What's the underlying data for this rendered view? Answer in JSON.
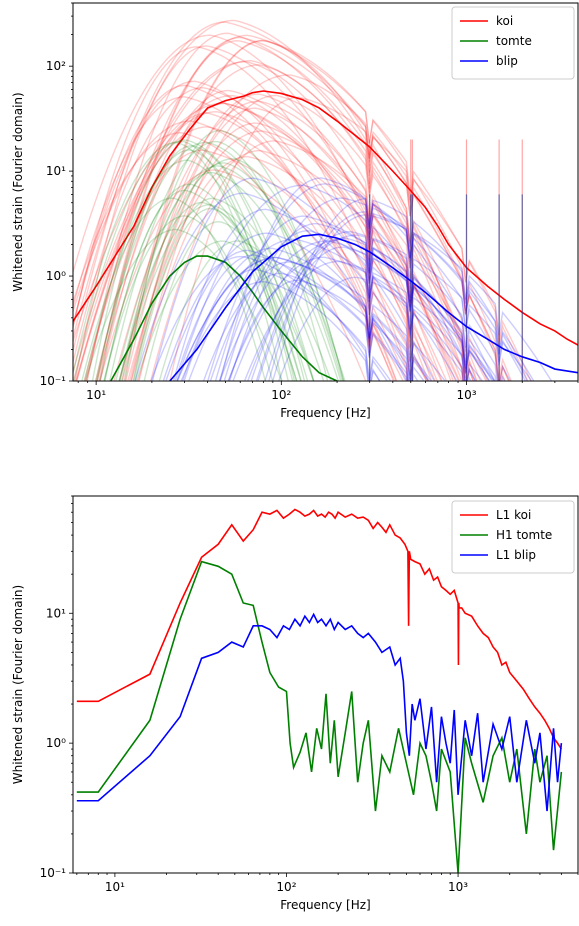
{
  "chart_data": [
    {
      "type": "line",
      "title": "",
      "xlabel": "Frequency [Hz]",
      "ylabel": "Whitened strain (Fourier domain)",
      "xscale": "log",
      "yscale": "log",
      "xlim": [
        7.5,
        4000
      ],
      "ylim": [
        0.1,
        400
      ],
      "xticks": [
        {
          "value": 10,
          "label": "10¹"
        },
        {
          "value": 100,
          "label": "10²"
        },
        {
          "value": 1000,
          "label": "10³"
        }
      ],
      "yticks": [
        {
          "value": 0.1,
          "label": "10⁻¹"
        },
        {
          "value": 1,
          "label": "10⁰"
        },
        {
          "value": 10,
          "label": "10¹"
        },
        {
          "value": 100,
          "label": "10²"
        }
      ],
      "grid": false,
      "legend_position": "top-right",
      "series": [
        {
          "name": "koi",
          "color": "#ff0000",
          "bundle": {
            "count": 40,
            "peak_f": [
              25,
              130
            ],
            "peak_amp": [
              10,
              320
            ],
            "rise": 2.2,
            "fall": 1.2
          },
          "mean": {
            "x": [
              7.5,
              10,
              16,
              20,
              25,
              32,
              40,
              50,
              63,
              70,
              80,
              100,
              130,
              160,
              200,
              250,
              300,
              400,
              500,
              600,
              700,
              800,
              1000,
              1300,
              1600,
              2000,
              2500,
              3000,
              3500,
              4000
            ],
            "y": [
              0.37,
              0.8,
              3.0,
              7.0,
              14,
              25,
              40,
              47,
              52,
              56,
              58,
              55,
              48,
              40,
              30,
              22,
              17,
              10,
              6.5,
              4.5,
              3.0,
              2.0,
              1.2,
              0.8,
              0.6,
              0.45,
              0.35,
              0.3,
              0.25,
              0.22
            ]
          }
        },
        {
          "name": "tomte",
          "color": "#008000",
          "bundle": {
            "count": 25,
            "peak_f": [
              25,
              60
            ],
            "peak_amp": [
              2,
              25
            ],
            "rise": 3.5,
            "fall": 3.5
          },
          "mean": {
            "x": [
              12,
              16,
              20,
              25,
              30,
              35,
              40,
              50,
              60,
              70,
              80,
              100,
              130,
              160,
              200
            ],
            "y": [
              0.1,
              0.25,
              0.55,
              1.0,
              1.35,
              1.55,
              1.55,
              1.35,
              1.0,
              0.7,
              0.5,
              0.3,
              0.17,
              0.12,
              0.1
            ]
          }
        },
        {
          "name": "blip",
          "color": "#0000ff",
          "bundle": {
            "count": 35,
            "peak_f": [
              60,
              300
            ],
            "peak_amp": [
              0.8,
              9
            ],
            "rise": 2.5,
            "fall": 1.1
          },
          "mean": {
            "x": [
              25,
              35,
              50,
              70,
              100,
              130,
              160,
              200,
              250,
              300,
              400,
              500,
              600,
              800,
              1000,
              1300,
              1600,
              2000,
              2500,
              3000,
              4000
            ],
            "y": [
              0.1,
              0.2,
              0.5,
              1.1,
              1.9,
              2.4,
              2.5,
              2.3,
              2.0,
              1.7,
              1.2,
              0.9,
              0.7,
              0.45,
              0.33,
              0.25,
              0.2,
              0.17,
              0.15,
              0.13,
              0.12
            ]
          }
        }
      ],
      "spectral_lines_hz": [
        300,
        500,
        510,
        1000,
        1500,
        2000
      ]
    },
    {
      "type": "line",
      "title": "",
      "xlabel": "Frequency [Hz]",
      "ylabel": "Whitened strain (Fourier domain)",
      "xscale": "log",
      "yscale": "log",
      "xlim": [
        5.7,
        5000
      ],
      "ylim": [
        0.1,
        80
      ],
      "xticks": [
        {
          "value": 10,
          "label": "10¹"
        },
        {
          "value": 100,
          "label": "10²"
        },
        {
          "value": 1000,
          "label": "10³"
        }
      ],
      "yticks": [
        {
          "value": 0.1,
          "label": "10⁻¹"
        },
        {
          "value": 1,
          "label": "10⁰"
        },
        {
          "value": 10,
          "label": "10¹"
        }
      ],
      "grid": false,
      "legend_position": "top-right",
      "series": [
        {
          "name": "L1 koi",
          "color": "#ff0000",
          "x": [
            6,
            8,
            16,
            24,
            32,
            40,
            48,
            56,
            64,
            72,
            80,
            88,
            96,
            104,
            112,
            120,
            128,
            136,
            144,
            152,
            160,
            168,
            176,
            184,
            192,
            200,
            220,
            240,
            260,
            280,
            300,
            320,
            340,
            360,
            380,
            400,
            430,
            460,
            490,
            510,
            515,
            520,
            525,
            530,
            560,
            600,
            640,
            680,
            720,
            760,
            800,
            850,
            900,
            950,
            1000,
            1005,
            1010,
            1015,
            1050,
            1100,
            1200,
            1300,
            1400,
            1500,
            1600,
            1700,
            1800,
            1900,
            2000,
            2200,
            2400,
            2600,
            2800,
            3000,
            3200,
            3400,
            3600,
            3800,
            4000
          ],
          "y": [
            2.1,
            2.1,
            3.4,
            12,
            27,
            34,
            48,
            36,
            44,
            60,
            58,
            62,
            54,
            58,
            63,
            60,
            56,
            58,
            62,
            56,
            58,
            55,
            60,
            58,
            54,
            60,
            55,
            58,
            54,
            55,
            52,
            45,
            50,
            46,
            42,
            48,
            40,
            38,
            34,
            30,
            8,
            30,
            28,
            26,
            25,
            24,
            20,
            22,
            18,
            19,
            16,
            15,
            14,
            15,
            12,
            4,
            12,
            11,
            11,
            10,
            9.5,
            8,
            7,
            6.5,
            5.5,
            5,
            4,
            4.2,
            3.5,
            3,
            2.6,
            2.2,
            1.9,
            1.7,
            1.5,
            1.3,
            1.1,
            1.0,
            0.9
          ]
        },
        {
          "name": "H1 tomte",
          "color": "#008000",
          "x": [
            6,
            8,
            16,
            24,
            32,
            40,
            48,
            56,
            64,
            72,
            80,
            90,
            100,
            105,
            110,
            120,
            130,
            140,
            150,
            160,
            170,
            180,
            190,
            200,
            220,
            240,
            260,
            280,
            300,
            330,
            360,
            400,
            450,
            500,
            550,
            600,
            650,
            700,
            750,
            800,
            900,
            1000,
            1100,
            1200,
            1400,
            1600,
            1800,
            2000,
            2200,
            2500,
            2800,
            3000,
            3300,
            3600,
            4000
          ],
          "y": [
            0.42,
            0.42,
            1.5,
            9,
            25,
            23,
            20,
            12,
            11.5,
            6,
            3.5,
            2.7,
            2.5,
            1.0,
            0.65,
            0.85,
            1.2,
            0.6,
            1.3,
            0.9,
            2.4,
            0.7,
            1.5,
            0.55,
            1.2,
            2.5,
            0.5,
            1.0,
            1.5,
            0.3,
            0.8,
            0.6,
            1.3,
            0.7,
            0.4,
            1.0,
            0.8,
            0.5,
            0.3,
            0.9,
            0.6,
            0.1,
            1.1,
            0.7,
            0.35,
            0.8,
            1.1,
            0.5,
            0.9,
            0.2,
            0.9,
            0.5,
            0.8,
            0.15,
            0.6
          ]
        },
        {
          "name": "L1 blip",
          "color": "#0000ff",
          "x": [
            6,
            8,
            16,
            24,
            32,
            40,
            48,
            56,
            64,
            72,
            80,
            88,
            96,
            104,
            112,
            120,
            128,
            136,
            144,
            152,
            160,
            170,
            180,
            190,
            200,
            220,
            240,
            260,
            280,
            300,
            330,
            360,
            400,
            430,
            460,
            480,
            500,
            520,
            540,
            560,
            600,
            650,
            700,
            750,
            800,
            850,
            900,
            950,
            1000,
            1100,
            1200,
            1300,
            1400,
            1600,
            1800,
            2000,
            2200,
            2500,
            2800,
            3000,
            3300,
            3600,
            3800,
            4000
          ],
          "y": [
            0.36,
            0.36,
            0.8,
            1.6,
            4.5,
            5,
            6,
            5.5,
            8,
            8,
            7.5,
            6.5,
            8,
            7.5,
            9,
            8,
            9.5,
            8.5,
            9.8,
            8.5,
            9,
            8,
            9,
            7.5,
            8.5,
            7.5,
            8,
            7,
            6.5,
            7,
            6,
            5,
            5.5,
            4,
            4.5,
            3,
            1.2,
            0.8,
            2,
            1.5,
            2.2,
            0.9,
            1.9,
            0.5,
            1.6,
            1.0,
            0.7,
            1.8,
            0.4,
            1.5,
            0.8,
            1.7,
            0.5,
            1.4,
            0.9,
            1.6,
            0.5,
            1.5,
            0.7,
            1.2,
            0.3,
            1.3,
            0.5,
            1.0
          ]
        }
      ]
    }
  ]
}
